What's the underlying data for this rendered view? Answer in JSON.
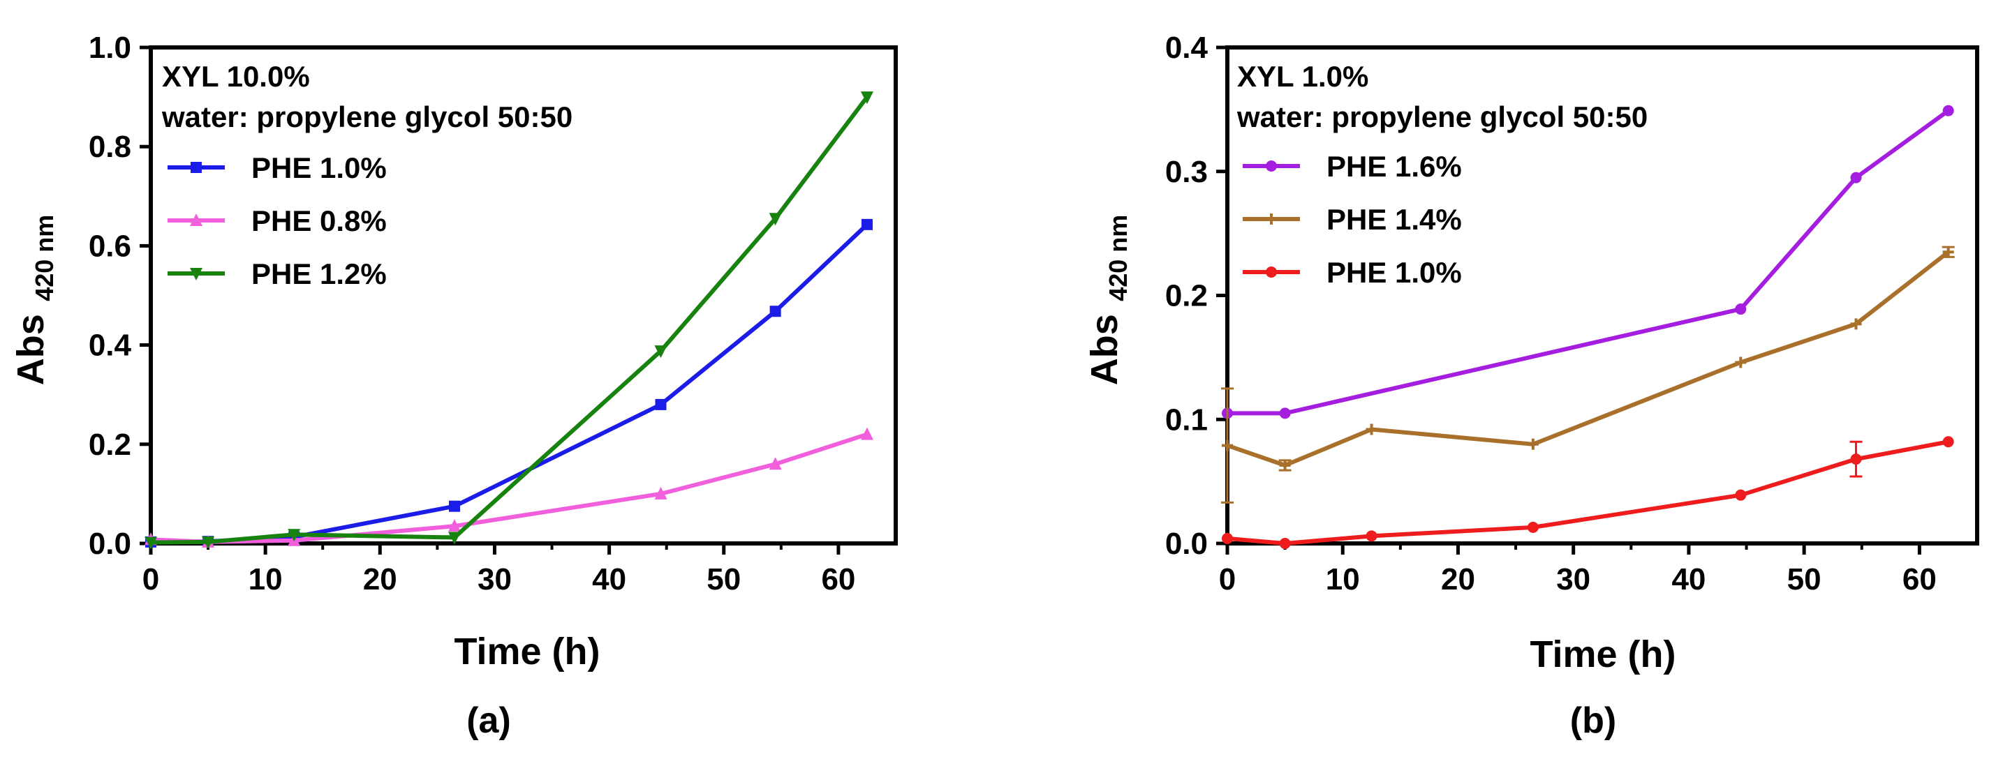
{
  "chart_data": [
    {
      "type": "line",
      "panel_label": "(a)",
      "annotations": [
        "XYL 10.0%",
        "water: propylene glycol 50:50"
      ],
      "xlabel": "Time (h)",
      "ylabel": "Abs",
      "ylabel_subscript": "420 nm",
      "xlim": [
        0,
        65
      ],
      "ylim": [
        0,
        1.0
      ],
      "xticks": [
        0,
        10,
        20,
        30,
        40,
        50,
        60
      ],
      "yticks": [
        "0.0",
        "0.2",
        "0.4",
        "0.6",
        "0.8",
        "1.0"
      ],
      "grid": false,
      "legend_position": "top-left",
      "series": [
        {
          "name": "PHE 1.0%",
          "color": "#1c1ce8",
          "marker": "square",
          "x": [
            0,
            5,
            12.5,
            26.5,
            44.5,
            54.5,
            62.5
          ],
          "y": [
            0.003,
            0.004,
            0.013,
            0.075,
            0.28,
            0.468,
            0.643
          ]
        },
        {
          "name": "PHE 0.8%",
          "color": "#f25fdd",
          "marker": "triangle-up",
          "x": [
            0,
            5,
            12.5,
            26.5,
            44.5,
            54.5,
            62.5
          ],
          "y": [
            0.008,
            0.003,
            0.006,
            0.035,
            0.1,
            0.16,
            0.22
          ]
        },
        {
          "name": "PHE 1.2%",
          "color": "#17820e",
          "marker": "triangle-down",
          "x": [
            0,
            5,
            12.5,
            26.5,
            44.5,
            54.5,
            62.5
          ],
          "y": [
            0.002,
            0.003,
            0.018,
            0.012,
            0.388,
            0.655,
            0.9
          ]
        }
      ]
    },
    {
      "type": "line",
      "panel_label": "(b)",
      "annotations": [
        "XYL 1.0%",
        "water: propylene glycol 50:50"
      ],
      "xlabel": "Time (h)",
      "ylabel": "Abs",
      "ylabel_subscript": "420 nm",
      "xlim": [
        0,
        65
      ],
      "ylim": [
        0,
        0.4
      ],
      "xticks": [
        0,
        10,
        20,
        30,
        40,
        50,
        60
      ],
      "yticks": [
        "0.0",
        "0.1",
        "0.2",
        "0.3",
        "0.4"
      ],
      "grid": false,
      "legend_position": "top-left",
      "series": [
        {
          "name": "PHE 1.6%",
          "color": "#a51ee0",
          "marker": "circle",
          "x": [
            0,
            5,
            44.5,
            54.5,
            62.5
          ],
          "y": [
            0.105,
            0.105,
            0.189,
            0.295,
            0.349
          ]
        },
        {
          "name": "PHE 1.4%",
          "color": "#a8702a",
          "marker": "plus",
          "x": [
            0,
            5,
            12.5,
            26.5,
            44.5,
            54.5,
            62.5
          ],
          "y": [
            0.079,
            0.063,
            0.092,
            0.08,
            0.146,
            0.177,
            0.235
          ],
          "err": [
            0.046,
            0.004,
            0,
            0,
            0,
            0,
            0.004
          ]
        },
        {
          "name": "PHE 1.0%",
          "color": "#ee1c1c",
          "marker": "circle",
          "x": [
            0,
            5,
            12.5,
            26.5,
            44.5,
            54.5,
            62.5
          ],
          "y": [
            0.004,
            0.0,
            0.006,
            0.013,
            0.039,
            0.068,
            0.082
          ],
          "err": [
            0,
            0,
            0,
            0,
            0,
            0.014,
            0
          ]
        }
      ]
    }
  ]
}
